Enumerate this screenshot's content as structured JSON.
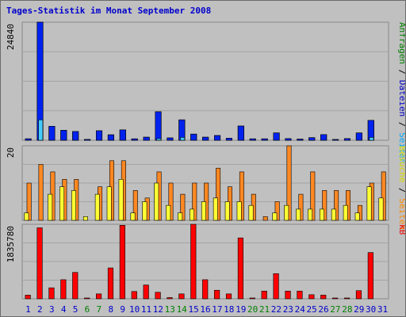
{
  "chart_data": {
    "title": "Tages-Statistik im Monat September 2008",
    "categories": [
      "1",
      "2",
      "3",
      "4",
      "5",
      "6",
      "7",
      "8",
      "9",
      "10",
      "11",
      "12",
      "13",
      "14",
      "15",
      "16",
      "17",
      "18",
      "19",
      "20",
      "21",
      "22",
      "23",
      "24",
      "25",
      "26",
      "27",
      "28",
      "29",
      "30",
      "31"
    ],
    "category_colors": [
      "#0000cc",
      "#0000cc",
      "#0000cc",
      "#0000cc",
      "#0000cc",
      "#008000",
      "#008000",
      "#0000cc",
      "#0000cc",
      "#0000cc",
      "#0000cc",
      "#0000cc",
      "#008000",
      "#008000",
      "#0000cc",
      "#0000cc",
      "#0000cc",
      "#0000cc",
      "#0000cc",
      "#008000",
      "#008000",
      "#0000cc",
      "#0000cc",
      "#0000cc",
      "#0000cc",
      "#0000cc",
      "#008000",
      "#008000",
      "#0000cc",
      "#0000cc",
      "#0000cc"
    ],
    "panels": [
      {
        "id": "top",
        "type": "bar",
        "ymax": 24840,
        "ymax_label": "24840",
        "side_label_parts": [
          {
            "text": "Anfragen",
            "color": "#008000"
          },
          {
            "text": " / ",
            "color": "#000000"
          },
          {
            "text": "Dateien",
            "color": "#0000cc"
          },
          {
            "text": " / ",
            "color": "#000000"
          },
          {
            "text": "Seiten",
            "color": "#00aaff"
          }
        ],
        "series": [
          {
            "name": "Anfragen",
            "color": "#006633",
            "values": [
              310,
              24840,
              2950,
              2100,
              1850,
              180,
              2000,
              1150,
              2200,
              300,
              650,
              6000,
              500,
              4300,
              1300,
              650,
              1000,
              450,
              3000,
              300,
              300,
              1550,
              350,
              250,
              550,
              1200,
              120,
              350,
              1550,
              4200,
              0
            ]
          },
          {
            "name": "Dateien",
            "color": "#0022ee",
            "values": [
              310,
              24840,
              2950,
              2100,
              1850,
              180,
              2000,
              1150,
              2200,
              300,
              650,
              6000,
              500,
              4300,
              1300,
              650,
              1000,
              450,
              3000,
              300,
              300,
              1550,
              350,
              250,
              550,
              1200,
              120,
              350,
              1550,
              4200,
              0
            ]
          },
          {
            "name": "Seiten",
            "color": "#44ccff",
            "values": [
              0,
              4300,
              0,
              0,
              0,
              0,
              0,
              0,
              0,
              0,
              0,
              350,
              0,
              600,
              0,
              0,
              0,
              0,
              0,
              0,
              0,
              0,
              0,
              0,
              0,
              0,
              0,
              0,
              0,
              600,
              0
            ]
          }
        ]
      },
      {
        "id": "middle",
        "type": "bar",
        "ymax": 20,
        "ymax_label": "20",
        "side_label_parts": [
          {
            "text": "Besuche",
            "color": "#dddd00"
          },
          {
            "text": " / ",
            "color": "#000000"
          },
          {
            "text": "Seiten",
            "color": "#ff8800"
          }
        ],
        "series": [
          {
            "name": "Seiten",
            "color": "#ff8822",
            "values": [
              10,
              15,
              13,
              11,
              11,
              0,
              9,
              16,
              16,
              8,
              6,
              13,
              10,
              7,
              10,
              10,
              14,
              9,
              13,
              7,
              1,
              5,
              20,
              7,
              13,
              8,
              8,
              8,
              4,
              10,
              13
            ]
          },
          {
            "name": "Besuche",
            "color": "#ffff33",
            "values": [
              2,
              0,
              7,
              9,
              8,
              1,
              7,
              9,
              11,
              2,
              5,
              10,
              4,
              2,
              3,
              5,
              6,
              5,
              5,
              4,
              0,
              2,
              4,
              3,
              3,
              3,
              3,
              4,
              2,
              9,
              6
            ]
          }
        ]
      },
      {
        "id": "bottom",
        "type": "bar",
        "ymax": 1835780,
        "ymax_label": "1835780",
        "side_label_parts": [
          {
            "text": "kB",
            "color": "#ee0000"
          }
        ],
        "series": [
          {
            "name": "kB",
            "color": "#ff0000",
            "values": [
              90000,
              1750000,
              270000,
              470000,
              650000,
              20000,
              120000,
              760000,
              1810000,
              180000,
              340000,
              160000,
              30000,
              120000,
              1835780,
              470000,
              210000,
              120000,
              1500000,
              20000,
              190000,
              620000,
              190000,
              190000,
              100000,
              90000,
              20000,
              20000,
              200000,
              1140000,
              0
            ]
          }
        ]
      }
    ]
  }
}
